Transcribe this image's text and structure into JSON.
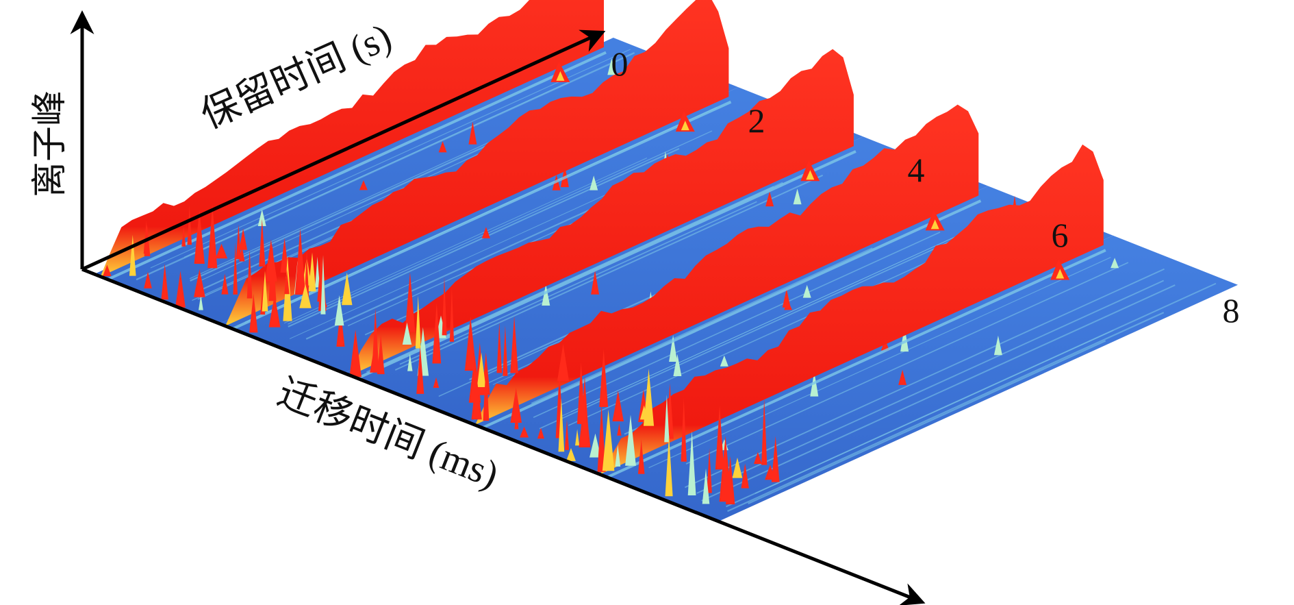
{
  "chart_data": {
    "type": "surface-3d",
    "axes": {
      "z_label": "离子峰",
      "y_label": "保留时间 (s)",
      "x_label": "迁移时间 (ms)"
    },
    "series_labels": [
      "0",
      "2",
      "4",
      "6",
      "8"
    ],
    "colors": {
      "base": "#2f6bd4",
      "base_light": "#7ec8e8",
      "ridge": "#ff2a1a",
      "ridge_dark": "#e01010",
      "peak_mid": "#ffd23a",
      "peak_low": "#b9f0d0"
    }
  }
}
